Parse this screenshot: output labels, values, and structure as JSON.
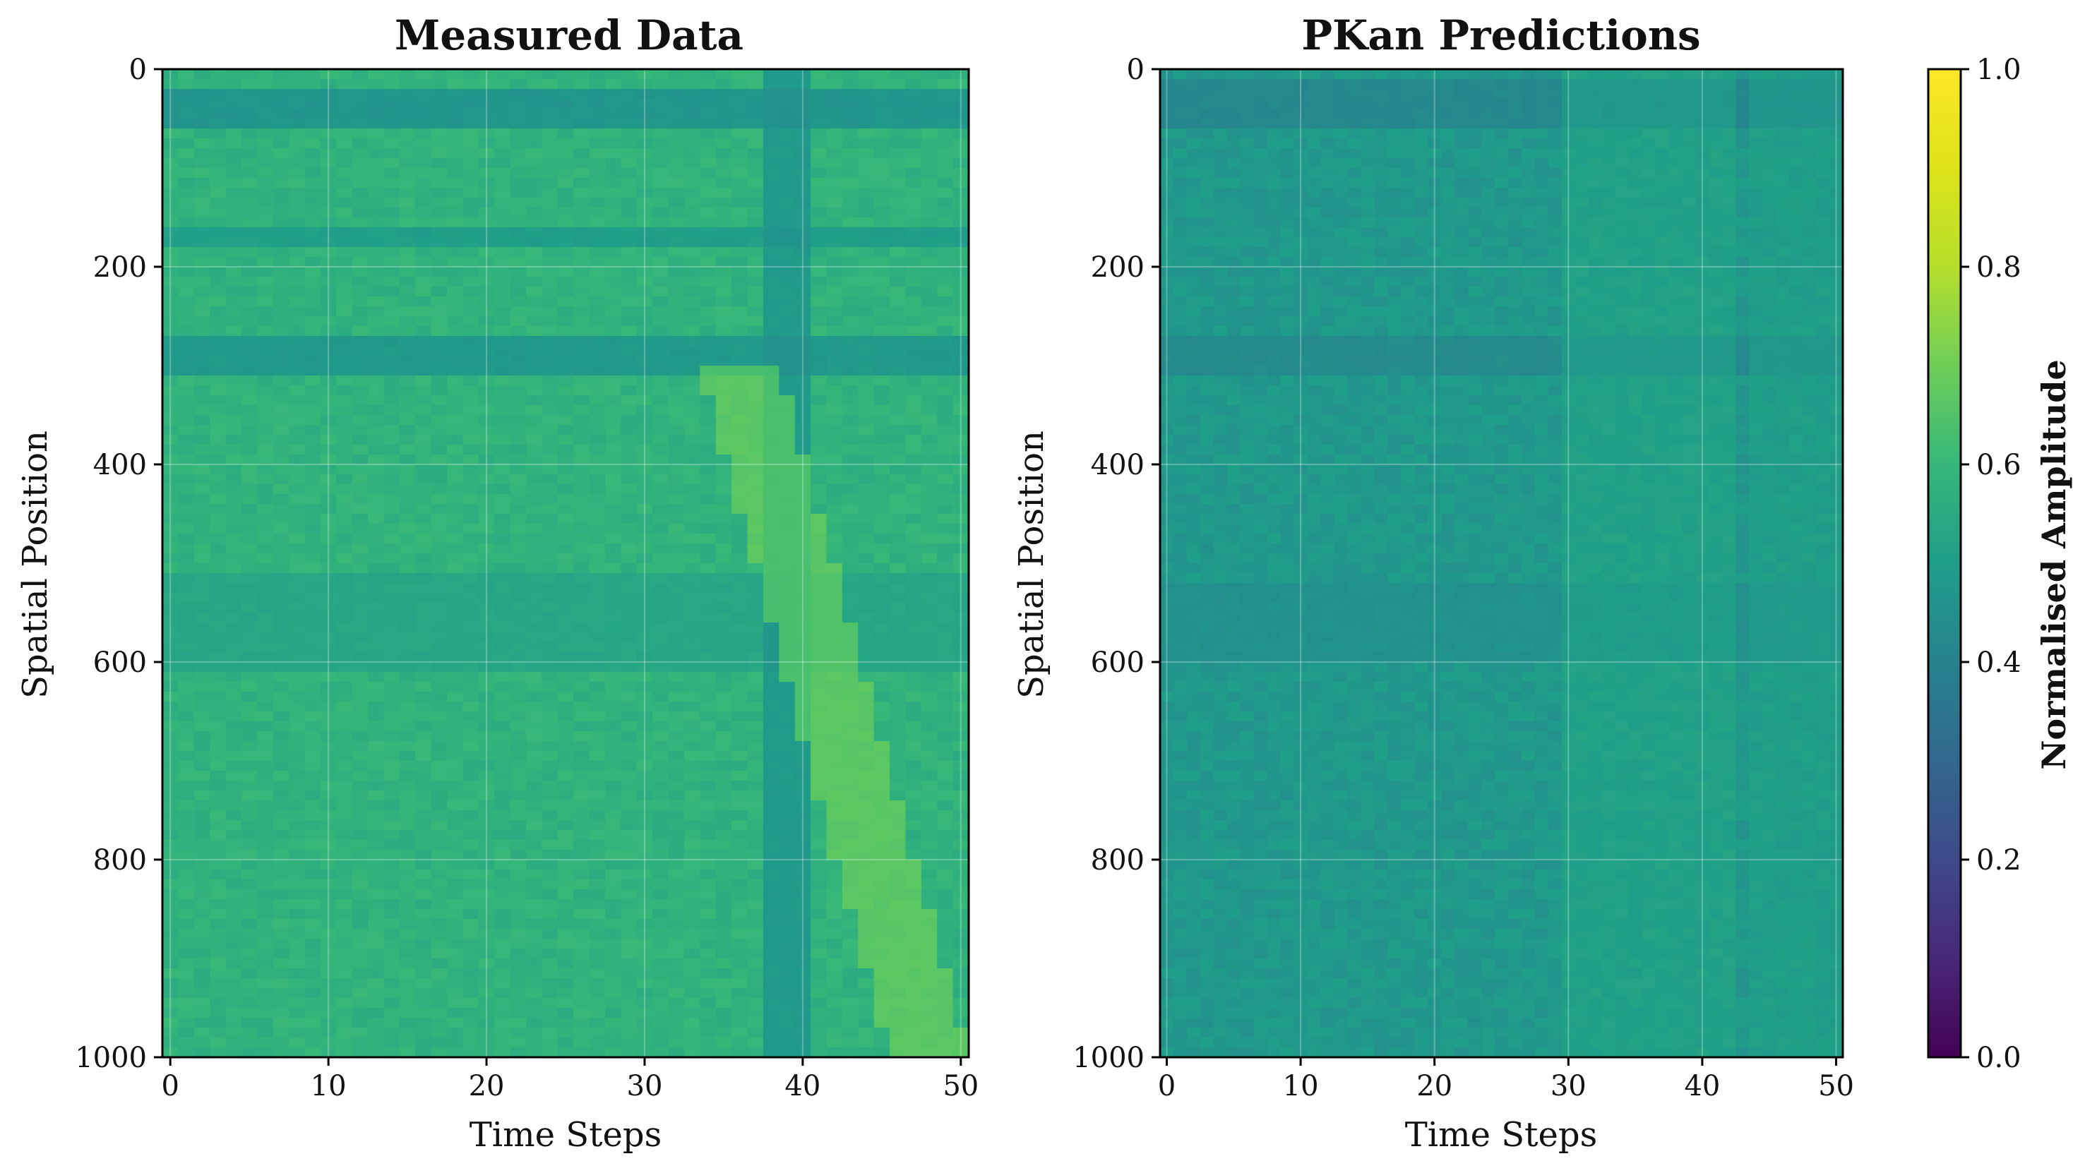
{
  "chart_data": [
    {
      "type": "heatmap",
      "title": "Measured Data",
      "xlabel": "Time Steps",
      "ylabel": "Spatial Position",
      "xlim": [
        -0.5,
        50.5
      ],
      "ylim": [
        1000,
        0
      ],
      "xticks": [
        "0",
        "10",
        "20",
        "30",
        "40",
        "50"
      ],
      "yticks": [
        "0",
        "200",
        "400",
        "600",
        "800",
        "1000"
      ],
      "grid": true,
      "colormap": "viridis",
      "base_value": 0.58,
      "features": [
        {
          "kind": "band",
          "y": 40,
          "width": 16,
          "value": 0.4
        },
        {
          "kind": "band",
          "y": 170,
          "width": 12,
          "value": 0.45
        },
        {
          "kind": "band",
          "y": 290,
          "width": 22,
          "value": 0.42
        },
        {
          "kind": "band",
          "y": 560,
          "width": 50,
          "value": 0.5
        },
        {
          "kind": "column",
          "x": 39,
          "width": 1.5,
          "value": 0.45
        },
        {
          "kind": "diagonal",
          "x0": 36,
          "y0": 300,
          "x1": 48,
          "y1": 1000,
          "width": 2.5,
          "value": 0.7
        }
      ]
    },
    {
      "type": "heatmap",
      "title": "PKan Predictions",
      "xlabel": "Time Steps",
      "ylabel": "Spatial Position",
      "xlim": [
        -0.5,
        50.5
      ],
      "ylim": [
        1000,
        0
      ],
      "xticks": [
        "0",
        "10",
        "20",
        "30",
        "40",
        "50"
      ],
      "yticks": [
        "0",
        "200",
        "400",
        "600",
        "800",
        "1000"
      ],
      "grid": true,
      "colormap": "viridis",
      "base_value": 0.48,
      "features": [
        {
          "kind": "band",
          "y": 35,
          "width": 30,
          "value": 0.38
        },
        {
          "kind": "band",
          "y": 290,
          "width": 25,
          "value": 0.4
        },
        {
          "kind": "band",
          "y": 560,
          "width": 40,
          "value": 0.44
        },
        {
          "kind": "region",
          "x0": 30,
          "x1": 42,
          "value": 0.54
        },
        {
          "kind": "region",
          "x0": 44,
          "x1": 50.5,
          "value": 0.52
        }
      ]
    }
  ],
  "colorbar": {
    "label": "Normalised Amplitude",
    "range": [
      0.0,
      1.0
    ],
    "ticks": [
      "0.0",
      "0.2",
      "0.4",
      "0.6",
      "0.8",
      "1.0"
    ],
    "colormap": "viridis"
  }
}
